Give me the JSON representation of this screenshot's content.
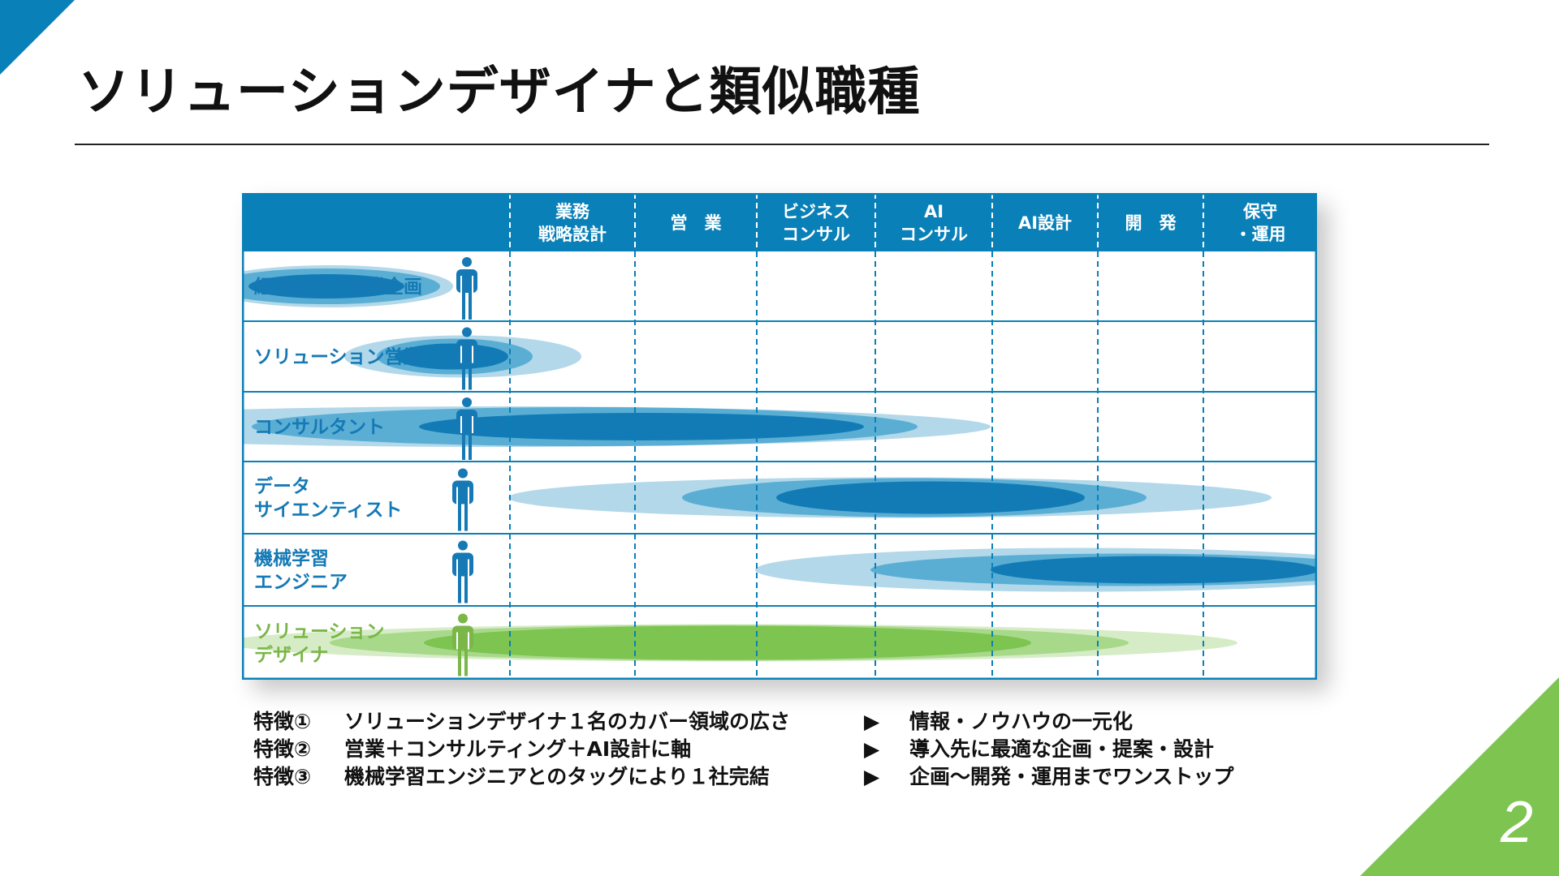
{
  "title": "ソリューションデザイナと類似職種",
  "page_number": "2",
  "colors": {
    "primary_blue": "#0a80b8",
    "accent_green": "#7dc450",
    "header_bg": "#0a80b8",
    "row_label_blue": "#1579b5",
    "row_label_green": "#7ab648"
  },
  "columns": [
    {
      "lines": [
        "業務",
        "戦略設計"
      ]
    },
    {
      "lines": [
        "営　業"
      ]
    },
    {
      "lines": [
        "ビジネス",
        "コンサル"
      ]
    },
    {
      "lines": [
        "AI",
        "コンサル"
      ]
    },
    {
      "lines": [
        "AI設計"
      ]
    },
    {
      "lines": [
        "開　発"
      ]
    },
    {
      "lines": [
        "保守",
        "・運用"
      ]
    }
  ],
  "rows": [
    {
      "lines": [
        "経営企画・事業企画"
      ],
      "icon": "person-icon",
      "color": "blue"
    },
    {
      "lines": [
        "ソリューション営業"
      ],
      "icon": "person-icon",
      "color": "blue"
    },
    {
      "lines": [
        "コンサルタント"
      ],
      "icon": "person-icon",
      "color": "blue"
    },
    {
      "lines": [
        "データ",
        "サイエンティスト"
      ],
      "icon": "person-icon",
      "color": "blue"
    },
    {
      "lines": [
        "機械学習",
        "エンジニア"
      ],
      "icon": "person-icon",
      "color": "blue"
    },
    {
      "lines": [
        "ソリューション",
        "デザイナ"
      ],
      "icon": "person-icon",
      "color": "green"
    }
  ],
  "features": [
    {
      "label": "特徴①",
      "text": "ソリューションデザイナ１名のカバー領域の広さ",
      "arrow": "▶",
      "result": "情報・ノウハウの一元化"
    },
    {
      "label": "特徴②",
      "text": "営業＋コンサルティング＋AI設計に軸",
      "arrow": "▶",
      "result": "導入先に最適な企画・提案・設計"
    },
    {
      "label": "特徴③",
      "text": "機械学習エンジニアとのタッグにより１社完結",
      "arrow": "▶",
      "result": "企画〜開発・運用までワンストップ"
    }
  ]
}
